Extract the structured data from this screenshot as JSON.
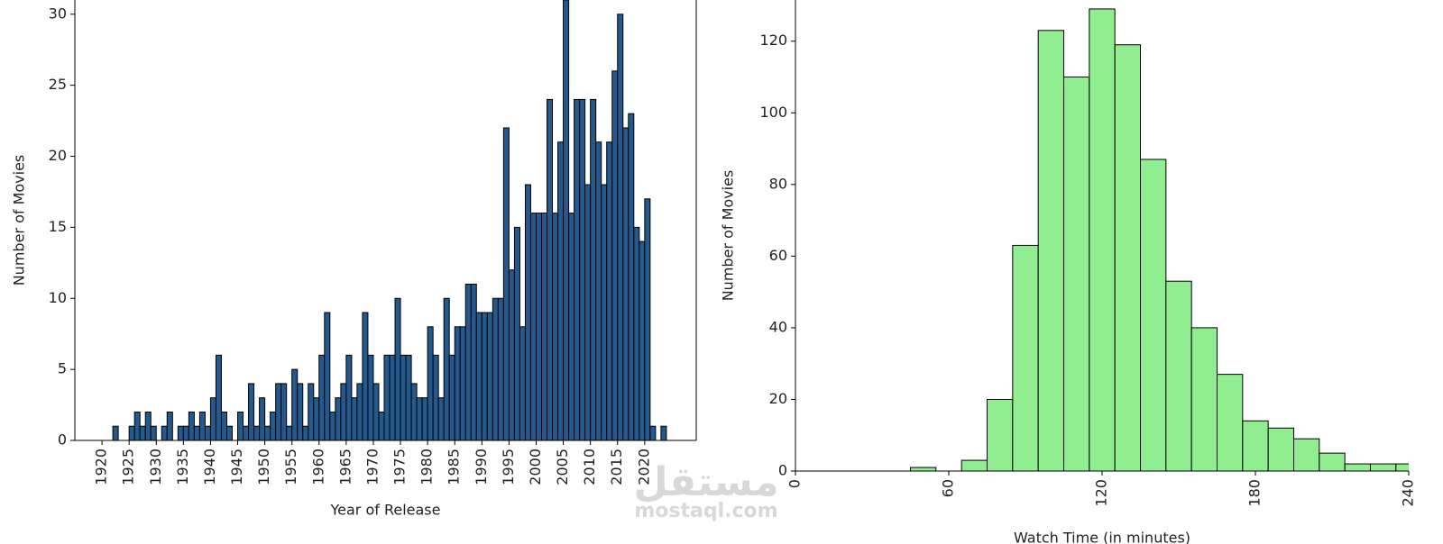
{
  "chart_data": [
    {
      "type": "histogram",
      "xlabel": "Year of Release",
      "ylabel": "Number of Movies",
      "color": "#23598c",
      "bins": [
        1921,
        1922,
        1923,
        1924,
        1925,
        1926,
        1927,
        1928,
        1929,
        1930,
        1931,
        1932,
        1933,
        1934,
        1935,
        1936,
        1937,
        1938,
        1939,
        1940,
        1941,
        1942,
        1943,
        1944,
        1945,
        1946,
        1947,
        1948,
        1949,
        1950,
        1951,
        1952,
        1953,
        1954,
        1955,
        1956,
        1957,
        1958,
        1959,
        1960,
        1961,
        1962,
        1963,
        1964,
        1965,
        1966,
        1967,
        1968,
        1969,
        1970,
        1971,
        1972,
        1973,
        1974,
        1975,
        1976,
        1977,
        1978,
        1979,
        1980,
        1981,
        1982,
        1983,
        1984,
        1985,
        1986,
        1987,
        1988,
        1989,
        1990,
        1991,
        1992,
        1993,
        1994,
        1995,
        1996,
        1997,
        1998,
        1999,
        2000,
        2001,
        2002,
        2003,
        2004,
        2005,
        2006,
        2007,
        2008,
        2009,
        2010,
        2011,
        2012,
        2013,
        2014,
        2015,
        2016,
        2017,
        2018,
        2019,
        2020,
        2021,
        2022,
        2023,
        2024
      ],
      "values": [
        0,
        1,
        0,
        0,
        1,
        2,
        1,
        2,
        1,
        0,
        1,
        2,
        0,
        1,
        1,
        2,
        1,
        2,
        1,
        3,
        6,
        2,
        1,
        0,
        2,
        1,
        4,
        1,
        3,
        1,
        2,
        4,
        4,
        1,
        5,
        4,
        1,
        4,
        3,
        6,
        9,
        2,
        3,
        4,
        6,
        3,
        4,
        9,
        6,
        4,
        2,
        6,
        6,
        10,
        6,
        6,
        4,
        3,
        3,
        8,
        6,
        3,
        10,
        6,
        8,
        8,
        11,
        11,
        9,
        9,
        9,
        10,
        10,
        22,
        12,
        15,
        8,
        18,
        16,
        16,
        16,
        24,
        16,
        21,
        31,
        16,
        24,
        24,
        18,
        24,
        21,
        18,
        21,
        26,
        30,
        22,
        23,
        15,
        14,
        17,
        1,
        0,
        1
      ],
      "xlim": [
        1915,
        2029.5
      ],
      "xticks": [
        1920,
        1925,
        1930,
        1935,
        1940,
        1945,
        1950,
        1955,
        1960,
        1965,
        1970,
        1975,
        1980,
        1985,
        1990,
        1995,
        2000,
        2005,
        2010,
        2015,
        2020
      ],
      "ylim": [
        0,
        31
      ],
      "yticks": [
        0,
        5,
        10,
        15,
        20,
        25,
        30
      ]
    },
    {
      "type": "histogram",
      "xlabel": "Watch Time (in minutes)",
      "ylabel": "Number of Movies",
      "color": "#90ee90",
      "bins": [
        45,
        55,
        65,
        75,
        85,
        95,
        105,
        115,
        125,
        135,
        145,
        155,
        165,
        175,
        185,
        195,
        205,
        215,
        225,
        235,
        245
      ],
      "values": [
        1,
        0,
        3,
        20,
        63,
        123,
        110,
        129,
        119,
        87,
        53,
        40,
        27,
        14,
        12,
        9,
        5,
        2,
        2,
        2
      ],
      "xlim": [
        0,
        240
      ],
      "xticks": [
        0,
        60,
        120,
        180,
        240
      ],
      "ylim": [
        0,
        131.5
      ],
      "yticks": [
        0,
        20,
        40,
        60,
        80,
        100,
        120
      ]
    }
  ],
  "watermark": {
    "arabic": "مستقل",
    "latin": "mostaql.com"
  }
}
